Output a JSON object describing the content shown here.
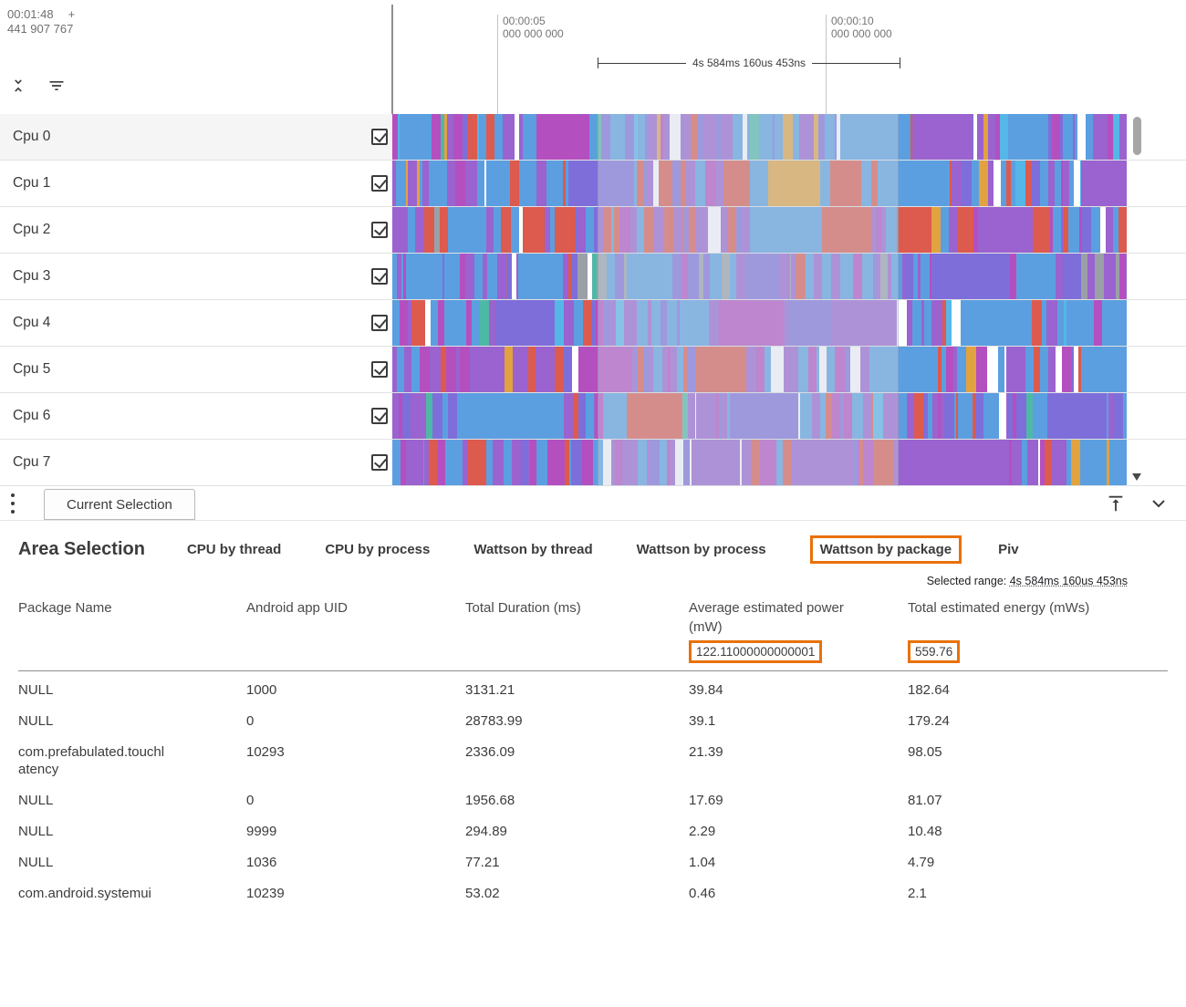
{
  "colors": {
    "accent_orange": "#e8710a",
    "row_border": "#e2e2e2",
    "selection_overlay": "rgba(203,212,226,0.42)"
  },
  "ruler": {
    "offset_time": "00:01:48",
    "offset_plus": "+",
    "offset_subtext": "441 907 767",
    "ticks": [
      {
        "line1": "00:00:05",
        "line2": "000 000 000"
      },
      {
        "line1": "00:00:10",
        "line2": "000 000 000"
      }
    ],
    "range_label": "4s 584ms 160us 453ns"
  },
  "tracks": [
    {
      "name": "Cpu 0",
      "checked": true,
      "highlight": true,
      "seed": 101,
      "weights": {
        "blue": 5,
        "lightblue": 1,
        "purple": 2.5,
        "violet": 1.5,
        "magenta": 1.2,
        "orange": 1,
        "red": 0.7,
        "teal": 0.3,
        "white": 0.3,
        "gray": 0.2
      }
    },
    {
      "name": "Cpu 1",
      "checked": true,
      "highlight": false,
      "seed": 202,
      "weights": {
        "blue": 4.5,
        "lightblue": 0.8,
        "purple": 2.5,
        "violet": 0.8,
        "magenta": 1,
        "orange": 0.5,
        "red": 2.2,
        "white": 0.9
      }
    },
    {
      "name": "Cpu 2",
      "checked": true,
      "highlight": false,
      "seed": 303,
      "weights": {
        "blue": 4,
        "purple": 2.8,
        "violet": 0.6,
        "magenta": 1,
        "orange": 0.6,
        "red": 3,
        "white": 0.3,
        "gray": 0.3
      }
    },
    {
      "name": "Cpu 3",
      "checked": true,
      "highlight": false,
      "seed": 404,
      "weights": {
        "blue": 4.5,
        "purple": 2.5,
        "violet": 2,
        "magenta": 0.8,
        "gray": 1.4,
        "red": 0.6,
        "white": 0.5,
        "teal": 0.3
      }
    },
    {
      "name": "Cpu 4",
      "checked": true,
      "highlight": false,
      "seed": 505,
      "weights": {
        "blue": 5.5,
        "lightblue": 1,
        "purple": 2.2,
        "violet": 1,
        "magenta": 1.4,
        "red": 0.8,
        "white": 0.6,
        "teal": 0.3
      }
    },
    {
      "name": "Cpu 5",
      "checked": true,
      "highlight": false,
      "seed": 606,
      "weights": {
        "blue": 3,
        "purple": 3.5,
        "violet": 1,
        "magenta": 1.6,
        "orange": 0.5,
        "red": 1.6,
        "white": 1.3
      }
    },
    {
      "name": "Cpu 6",
      "checked": true,
      "highlight": false,
      "seed": 707,
      "weights": {
        "blue": 3.2,
        "lightblue": 0.6,
        "purple": 4,
        "violet": 1.2,
        "magenta": 1.6,
        "red": 0.9,
        "white": 0.6,
        "teal": 0.4
      }
    },
    {
      "name": "Cpu 7",
      "checked": true,
      "highlight": false,
      "seed": 808,
      "weights": {
        "blue": 2.4,
        "purple": 4.5,
        "violet": 1,
        "magenta": 2,
        "orange": 0.5,
        "red": 2.2,
        "white": 0.8
      }
    }
  ],
  "track_render": {
    "palette": {
      "blue": "#5b9fe0",
      "lightblue": "#55b6e8",
      "purple": "#9a63cf",
      "violet": "#7e6eda",
      "magenta": "#b44fc0",
      "red": "#dc5a4e",
      "orange": "#e2a23f",
      "teal": "#4eb8a6",
      "gray": "#9aa0a6",
      "white": "#ffffff"
    }
  },
  "panel": {
    "tab_label": "Current Selection",
    "title": "Area Selection",
    "tabs": [
      {
        "label": "CPU by thread",
        "active": false
      },
      {
        "label": "CPU by process",
        "active": false
      },
      {
        "label": "Wattson by thread",
        "active": false
      },
      {
        "label": "Wattson by process",
        "active": false
      },
      {
        "label": "Wattson by package",
        "active": true
      },
      {
        "label": "Piv",
        "active": false
      }
    ],
    "selected_range_label": "Selected range:",
    "selected_range_value": "4s 584ms 160us 453ns",
    "table": {
      "columns": [
        "Package Name",
        "Android app UID",
        "Total Duration (ms)",
        "Average estimated power (mW)",
        "Total estimated energy (mWs)"
      ],
      "summary": {
        "average_power": "122.11000000000001",
        "total_energy": "559.76"
      },
      "rows": [
        [
          "NULL",
          "1000",
          "3131.21",
          "39.84",
          "182.64"
        ],
        [
          "NULL",
          "0",
          "28783.99",
          "39.1",
          "179.24"
        ],
        [
          "com.prefabulated.touchlatency",
          "10293",
          "2336.09",
          "21.39",
          "98.05"
        ],
        [
          "NULL",
          "0",
          "1956.68",
          "17.69",
          "81.07"
        ],
        [
          "NULL",
          "9999",
          "294.89",
          "2.29",
          "10.48"
        ],
        [
          "NULL",
          "1036",
          "77.21",
          "1.04",
          "4.79"
        ],
        [
          "com.android.systemui",
          "10239",
          "53.02",
          "0.46",
          "2.1"
        ]
      ]
    }
  }
}
